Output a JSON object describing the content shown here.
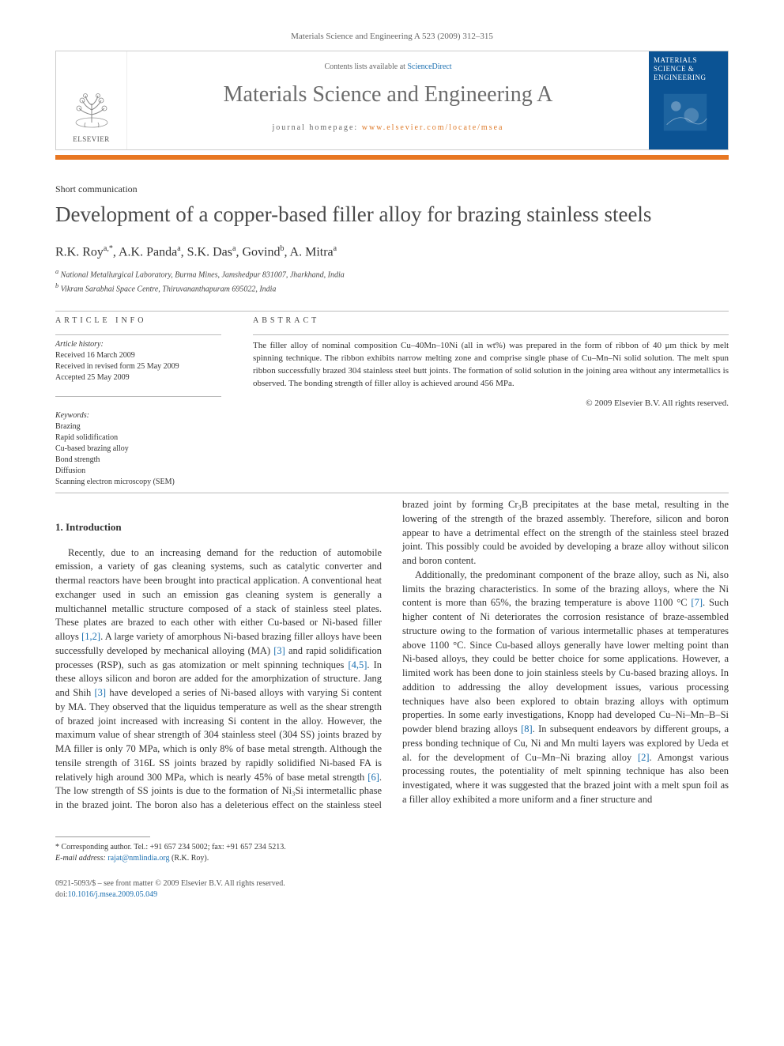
{
  "page_header": "Materials Science and Engineering A 523 (2009) 312–315",
  "banner": {
    "contents_prefix": "Contents lists available at ",
    "contents_link": "ScienceDirect",
    "journal_title": "Materials Science and Engineering A",
    "homepage_prefix": "journal homepage: ",
    "homepage_url": "www.elsevier.com/locate/msea",
    "elsevier": "ELSEVIER",
    "cover_label": "MATERIALS SCIENCE & ENGINEERING"
  },
  "article_type": "Short communication",
  "title": "Development of a copper-based filler alloy for brazing stainless steels",
  "authors_html": "R.K. Roy<sup>a,*</sup>, A.K. Panda<sup>a</sup>, S.K. Das<sup>a</sup>, Govind<sup>b</sup>, A. Mitra<sup>a</sup>",
  "affiliations": [
    "a National Metallurgical Laboratory, Burma Mines, Jamshedpur 831007, Jharkhand, India",
    "b Vikram Sarabhai Space Centre, Thiruvananthapuram 695022, India"
  ],
  "article_info_heading": "ARTICLE INFO",
  "abstract_heading": "ABSTRACT",
  "history": {
    "label": "Article history:",
    "items": [
      "Received 16 March 2009",
      "Received in revised form 25 May 2009",
      "Accepted 25 May 2009"
    ]
  },
  "keywords": {
    "label": "Keywords:",
    "items": [
      "Brazing",
      "Rapid solidification",
      "Cu-based brazing alloy",
      "Bond strength",
      "Diffusion",
      "Scanning electron microscopy (SEM)"
    ]
  },
  "abstract": "The filler alloy of nominal composition Cu–40Mn–10Ni (all in wt%) was prepared in the form of ribbon of 40 μm thick by melt spinning technique. The ribbon exhibits narrow melting zone and comprise single phase of Cu–Mn–Ni solid solution. The melt spun ribbon successfully brazed 304 stainless steel butt joints. The formation of solid solution in the joining area without any intermetallics is observed. The bonding strength of filler alloy is achieved around 456 MPa.",
  "copyright": "© 2009 Elsevier B.V. All rights reserved.",
  "section_heading": "1. Introduction",
  "body": {
    "p1a": "Recently, due to an increasing demand for the reduction of automobile emission, a variety of gas cleaning systems, such as catalytic converter and thermal reactors have been brought into practical application. A conventional heat exchanger used in such an emission gas cleaning system is generally a multichannel metallic structure composed of a stack of stainless steel plates. These plates are brazed to each other with either Cu-based or Ni-based filler alloys ",
    "r1": "[1,2]",
    "p1b": ". A large variety of amorphous Ni-based brazing filler alloys have been successfully developed by mechanical alloying (MA) ",
    "r2": "[3]",
    "p1c": " and rapid solidification processes (RSP), such as gas atomization or melt spinning techniques ",
    "r3": "[4,5]",
    "p1d": ". In these alloys silicon and boron are added for the amorphization of structure. Jang and Shih ",
    "r4": "[3]",
    "p1e": " have developed a series of Ni-based alloys with varying Si content by MA. They observed that the liquidus temperature as well as the shear strength of brazed joint increased with increasing Si content in the alloy. However, the maximum value of shear strength of 304 stainless steel (304 SS) joints brazed by MA filler is only 70 MPa, which is only 8% of base metal strength. Although the tensile strength of 316L SS joints brazed by rapidly solidified Ni-based FA is relatively high around 300 MPa, which is nearly 45% of base metal strength ",
    "r5": "[6]",
    "p1f": ". The low strength of SS joints is due to ",
    "p2a": "the formation of Ni₃Si intermetallic phase in the brazed joint. The boron also has a deleterious effect on the stainless steel brazed joint by forming Cr₃B precipitates at the base metal, resulting in the lowering of the strength of the brazed assembly. Therefore, silicon and boron appear to have a detrimental effect on the strength of the stainless steel brazed joint. This possibly could be avoided by developing a braze alloy without silicon and boron content.",
    "p3a": "Additionally, the predominant component of the braze alloy, such as Ni, also limits the brazing characteristics. In some of the brazing alloys, where the Ni content is more than 65%, the brazing temperature is above 1100 °C ",
    "r6": "[7]",
    "p3b": ". Such higher content of Ni deteriorates the corrosion resistance of braze-assembled structure owing to the formation of various intermetallic phases at temperatures above 1100 °C. Since Cu-based alloys generally have lower melting point than Ni-based alloys, they could be better choice for some applications. However, a limited work has been done to join stainless steels by Cu-based brazing alloys. In addition to addressing the alloy development issues, various processing techniques have also been explored to obtain brazing alloys with optimum properties. In some early investigations, Knopp had developed Cu–Ni–Mn–B–Si powder blend brazing alloys ",
    "r7": "[8]",
    "p3c": ". In subsequent endeavors by different groups, a press bonding technique of Cu, Ni and Mn multi layers was explored by Ueda et al. for the development of Cu–Mn–Ni brazing alloy ",
    "r8": "[2]",
    "p3d": ". Amongst various processing routes, the potentiality of melt spinning technique has also been investigated, where it was suggested that the brazed joint with a melt spun foil as a filler alloy exhibited a more uniform and a finer structure and"
  },
  "footnotes": {
    "corr": "* Corresponding author. Tel.: +91 657 234 5002; fax: +91 657 234 5213.",
    "email_label": "E-mail address: ",
    "email": "rajat@nmlindia.org",
    "email_suffix": " (R.K. Roy)."
  },
  "footer": {
    "line1": "0921-5093/$ – see front matter © 2009 Elsevier B.V. All rights reserved.",
    "doi_prefix": "doi:",
    "doi": "10.1016/j.msea.2009.05.049"
  },
  "colors": {
    "orange": "#e87722",
    "link_blue": "#1a6fb0",
    "cover_blue": "#0b5394",
    "title_gray": "#494949",
    "journal_gray": "#6b6b6b"
  }
}
